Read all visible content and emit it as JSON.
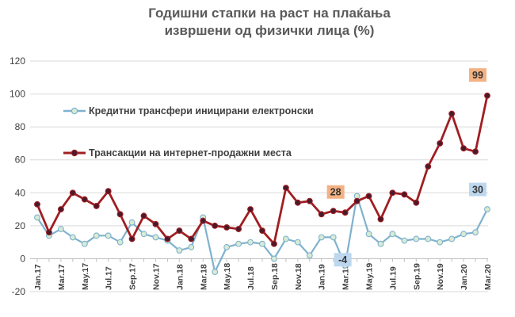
{
  "chart_data": {
    "type": "line",
    "title": [
      "Годишни стапки на раст на плаќања",
      "извршени од физички лица (%)"
    ],
    "xlabel": "",
    "ylabel": "",
    "ylim": [
      -20,
      120
    ],
    "yticks": [
      -20,
      0,
      20,
      40,
      60,
      80,
      100,
      120
    ],
    "grid": true,
    "legend": "inside-left",
    "x": [
      "Jan.17",
      "Feb.17",
      "Mar.17",
      "Apr.17",
      "May.17",
      "Jun.17",
      "Jul.17",
      "Aug.17",
      "Sep.17",
      "Oct.17",
      "Nov.17",
      "Dec.17",
      "Jan.18",
      "Feb.18",
      "Mar.18",
      "Apr.18",
      "May.18",
      "Jun.18",
      "Jul.18",
      "Aug.18",
      "Sep.18",
      "Oct.18",
      "Nov.18",
      "Dec.18",
      "Jan.19",
      "Feb.19",
      "Mar.19",
      "Apr.19",
      "May.19",
      "Jun.19",
      "Jul.19",
      "Aug.19",
      "Sep.19",
      "Oct.19",
      "Nov.19",
      "Dec.19",
      "Jan.20",
      "Feb.20",
      "Mar.20"
    ],
    "x_tick_labels": [
      "Jan.17",
      "Mar.17",
      "May.17",
      "Jul.17",
      "Sep.17",
      "Nov.17",
      "Jan.18",
      "Mar.18",
      "May.18",
      "Jul.18",
      "Sep.18",
      "Nov.18",
      "Jan.19",
      "Mar.19",
      "May.19",
      "Jul.19",
      "Sep.19",
      "Nov.19",
      "Jan.20",
      "Mar.20"
    ],
    "series": [
      {
        "name": "Кредитни трансфери иницирани електронски",
        "color": "#7fb2cf",
        "marker_fill": "#d8ebd4",
        "values": [
          25,
          14,
          18,
          13,
          9,
          14,
          14,
          10,
          22,
          15,
          13,
          11,
          5,
          7,
          25,
          -8,
          7,
          9,
          10,
          9,
          0,
          12,
          10,
          2,
          13,
          13,
          -4,
          38,
          15,
          9,
          15,
          11,
          12,
          12,
          10,
          12,
          15,
          16,
          30
        ]
      },
      {
        "name": "Трансакции на интернет-продажни места",
        "color": "#a01e22",
        "marker_fill": "#4a1a2c",
        "values": [
          33,
          16,
          30,
          40,
          36,
          32,
          41,
          27,
          12,
          26,
          21,
          12,
          17,
          12,
          23,
          20,
          19,
          18,
          30,
          17,
          9,
          43,
          34,
          35,
          27,
          29,
          28,
          35,
          38,
          24,
          40,
          39,
          34,
          56,
          70,
          88,
          67,
          65,
          99
        ]
      }
    ],
    "annotations": [
      {
        "text": "99",
        "series": 1,
        "index": 38,
        "fill": "#f4b183"
      },
      {
        "text": "28",
        "series": 1,
        "index": 26,
        "fill": "#f4b183"
      },
      {
        "text": "30",
        "series": 0,
        "index": 38,
        "fill": "#bdd7ee"
      },
      {
        "text": "-4",
        "series": 0,
        "index": 26,
        "fill": "#bdd7ee"
      }
    ]
  }
}
